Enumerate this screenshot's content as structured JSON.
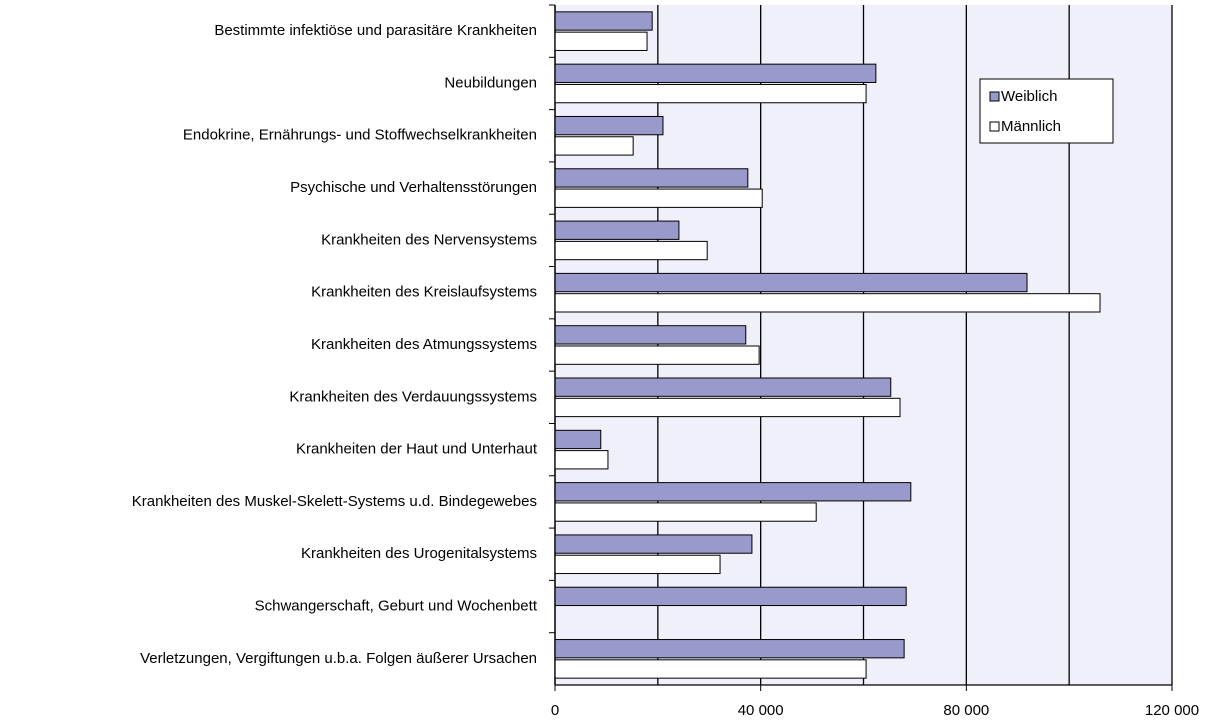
{
  "chart_data": {
    "type": "hbar",
    "categories": [
      "Bestimmte infektiöse und parasitäre Krankheiten",
      "Neubildungen",
      "Endokrine, Ernährungs- und Stoffwechselkrankheiten",
      "Psychische und Verhaltensstörungen",
      "Krankheiten des Nervensystems",
      "Krankheiten des Kreislaufsystems",
      "Krankheiten des Atmungssystems",
      "Krankheiten des Verdauungssystems",
      "Krankheiten der Haut und Unterhaut",
      "Krankheiten des Muskel-Skelett-Systems u.d. Bindegewebes",
      "Krankheiten des Urogenitalsystems",
      "Schwangerschaft, Geburt und Wochenbett",
      "Verletzungen, Vergiftungen u.b.a. Folgen äußerer Ursachen"
    ],
    "series": [
      {
        "name": "Weiblich",
        "color": "#9999cc",
        "values": [
          18900,
          62400,
          21000,
          37500,
          24100,
          91800,
          37100,
          65300,
          8900,
          69200,
          38300,
          68300,
          67900
        ]
      },
      {
        "name": "Männlich",
        "color": "#ffffff",
        "values": [
          17900,
          60500,
          15200,
          40300,
          29600,
          106000,
          39700,
          67100,
          10300,
          50800,
          32100,
          null,
          60500
        ]
      }
    ],
    "xlim": [
      0,
      120000
    ],
    "xticks": [
      0,
      {
        "value": 40000,
        "label": "40 000"
      },
      {
        "value": 80000,
        "label": "80 000"
      },
      {
        "value": 120000,
        "label": "120 000"
      }
    ],
    "minor_xticks": [
      20000,
      60000,
      100000
    ],
    "grid": true,
    "legend": "upper right"
  }
}
